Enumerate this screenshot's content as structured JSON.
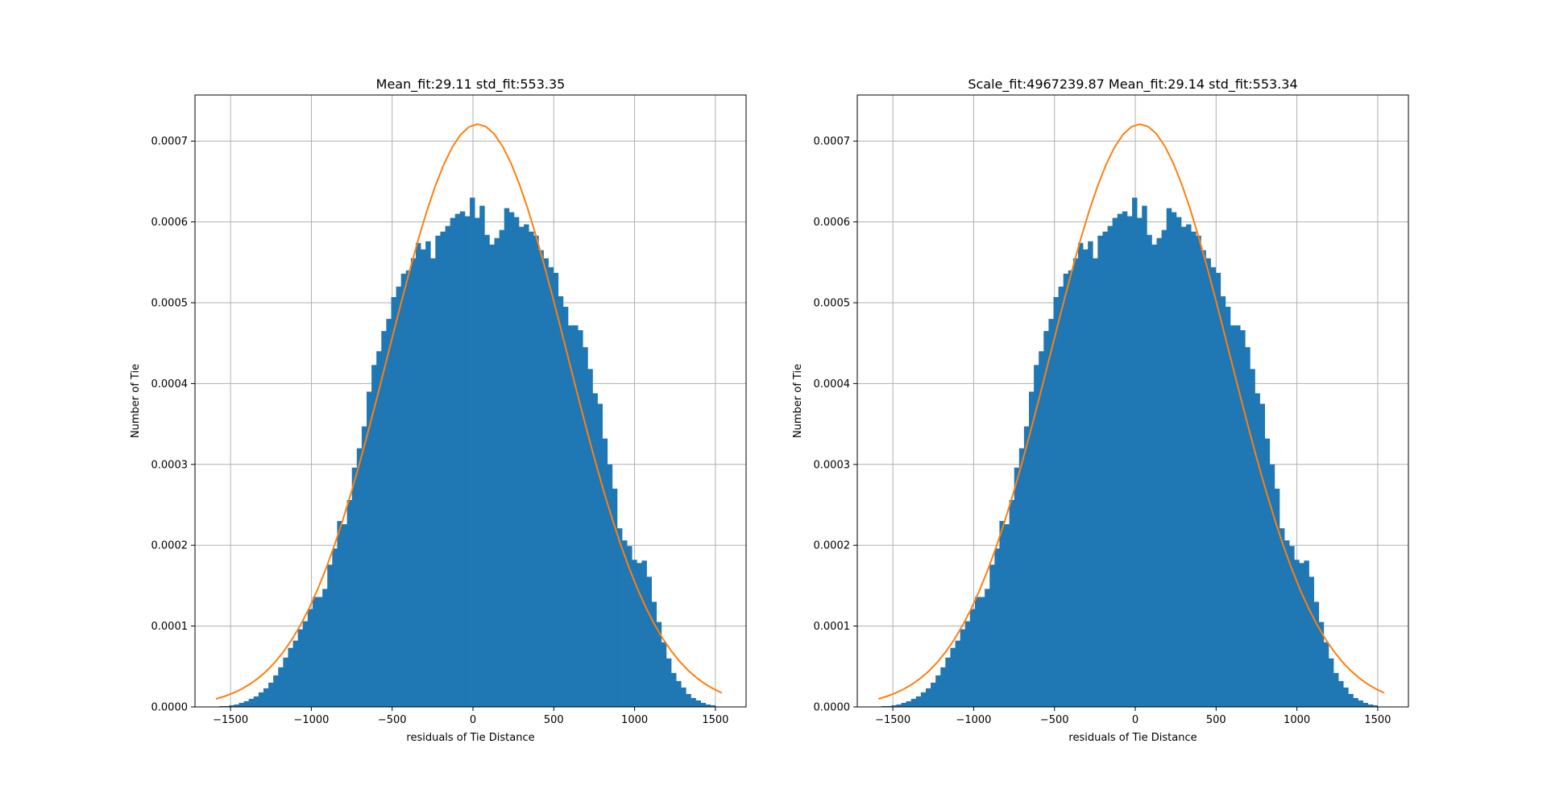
{
  "colors": {
    "bars": "#1f77b4",
    "fit_line": "#ff7f0e",
    "grid": "#b0b0b0",
    "axes": "#000000"
  },
  "chart_data": [
    {
      "type": "bar",
      "title": "Mean_fit:29.11   std_fit:553.35",
      "xlabel": "residuals of Tie Distance",
      "ylabel": "Number of Tie",
      "xlim": [
        -1720,
        1690
      ],
      "ylim": [
        0,
        0.000757
      ],
      "grid": true,
      "x_ticks": [
        -1500,
        -1000,
        -500,
        0,
        500,
        1000,
        1500
      ],
      "x_tick_labels": [
        "−1500",
        "−1000",
        "−500",
        "0",
        "500",
        "1000",
        "1500"
      ],
      "y_ticks": [
        0,
        0.0001,
        0.0002,
        0.0003,
        0.0004,
        0.0005,
        0.0006,
        0.0007
      ],
      "y_tick_labels": [
        "0.0000",
        "0.0001",
        "0.0002",
        "0.0003",
        "0.0004",
        "0.0005",
        "0.0006",
        "0.0007"
      ],
      "hist_range": [
        -1570,
        1500
      ],
      "values": [
        1e-06,
        1e-06,
        2e-06,
        3e-06,
        5e-06,
        7e-06,
        1e-05,
        1.3e-05,
        1.8e-05,
        2.3e-05,
        3e-05,
        3.9e-05,
        4.9e-05,
        6.1e-05,
        7.3e-05,
        8.2e-05,
        9.6e-05,
        0.000106,
        0.000121,
        0.000136,
        0.000136,
        0.000146,
        0.000176,
        0.000196,
        0.00023,
        0.000226,
        0.000256,
        0.000296,
        0.00032,
        0.000347,
        0.00039,
        0.000423,
        0.00044,
        0.000465,
        0.00048,
        0.000507,
        0.00052,
        0.000536,
        0.00054,
        0.000555,
        0.000574,
        0.000566,
        0.000576,
        0.000555,
        0.000583,
        0.000588,
        0.000595,
        0.000605,
        0.00061,
        0.000613,
        0.000607,
        0.00063,
        0.000605,
        0.00062,
        0.000584,
        0.000572,
        0.00058,
        0.00059,
        0.000617,
        0.000612,
        0.000606,
        0.000594,
        0.000597,
        0.000588,
        0.000583,
        0.000565,
        0.000555,
        0.000544,
        0.000537,
        0.000508,
        0.000495,
        0.000472,
        0.000472,
        0.000466,
        0.000445,
        0.000418,
        0.000388,
        0.000375,
        0.000332,
        0.0003,
        0.00027,
        0.000221,
        0.000206,
        0.000199,
        0.000182,
        0.000178,
        0.000181,
        0.000161,
        0.00013,
        0.000105,
        8e-05,
        6e-05,
        4.2e-05,
        3.2e-05,
        2.4e-05,
        1.6e-05,
        1.1e-05,
        8e-06,
        5e-06,
        3e-06,
        2e-06
      ],
      "fit_curve": {
        "mean": 29.11,
        "std": 553.35,
        "x_range": [
          -1590,
          1540
        ],
        "peak": 0.000721
      }
    },
    {
      "type": "bar",
      "title": "Scale_fit:4967239.87   Mean_fit:29.14   std_fit:553.34",
      "xlabel": "residuals of Tie Distance",
      "ylabel": "Number of Tie",
      "xlim": [
        -1720,
        1690
      ],
      "ylim": [
        0,
        0.000757
      ],
      "grid": true,
      "x_ticks": [
        -1500,
        -1000,
        -500,
        0,
        500,
        1000,
        1500
      ],
      "x_tick_labels": [
        "−1500",
        "−1000",
        "−500",
        "0",
        "500",
        "1000",
        "1500"
      ],
      "y_ticks": [
        0,
        0.0001,
        0.0002,
        0.0003,
        0.0004,
        0.0005,
        0.0006,
        0.0007
      ],
      "y_tick_labels": [
        "0.0000",
        "0.0001",
        "0.0002",
        "0.0003",
        "0.0004",
        "0.0005",
        "0.0006",
        "0.0007"
      ],
      "hist_range": [
        -1570,
        1500
      ],
      "values": [
        1e-06,
        1e-06,
        2e-06,
        3e-06,
        5e-06,
        7e-06,
        1e-05,
        1.3e-05,
        1.8e-05,
        2.3e-05,
        3e-05,
        3.9e-05,
        4.9e-05,
        6.1e-05,
        7.3e-05,
        8.2e-05,
        9.6e-05,
        0.000106,
        0.000121,
        0.000136,
        0.000136,
        0.000146,
        0.000176,
        0.000196,
        0.00023,
        0.000226,
        0.000256,
        0.000296,
        0.00032,
        0.000347,
        0.00039,
        0.000423,
        0.00044,
        0.000465,
        0.00048,
        0.000507,
        0.00052,
        0.000536,
        0.00054,
        0.000555,
        0.000574,
        0.000566,
        0.000576,
        0.000555,
        0.000583,
        0.000588,
        0.000595,
        0.000605,
        0.00061,
        0.000613,
        0.000607,
        0.00063,
        0.000605,
        0.00062,
        0.000584,
        0.000572,
        0.00058,
        0.00059,
        0.000617,
        0.000612,
        0.000606,
        0.000594,
        0.000597,
        0.000588,
        0.000583,
        0.000565,
        0.000555,
        0.000544,
        0.000537,
        0.000508,
        0.000495,
        0.000472,
        0.000472,
        0.000466,
        0.000445,
        0.000418,
        0.000388,
        0.000375,
        0.000332,
        0.0003,
        0.00027,
        0.000221,
        0.000206,
        0.000199,
        0.000182,
        0.000178,
        0.000181,
        0.000161,
        0.00013,
        0.000105,
        8e-05,
        6e-05,
        4.2e-05,
        3.2e-05,
        2.4e-05,
        1.6e-05,
        1.1e-05,
        8e-06,
        5e-06,
        3e-06,
        2e-06
      ],
      "fit_curve": {
        "mean": 29.14,
        "std": 553.34,
        "x_range": [
          -1590,
          1540
        ],
        "peak": 0.000721
      }
    }
  ]
}
